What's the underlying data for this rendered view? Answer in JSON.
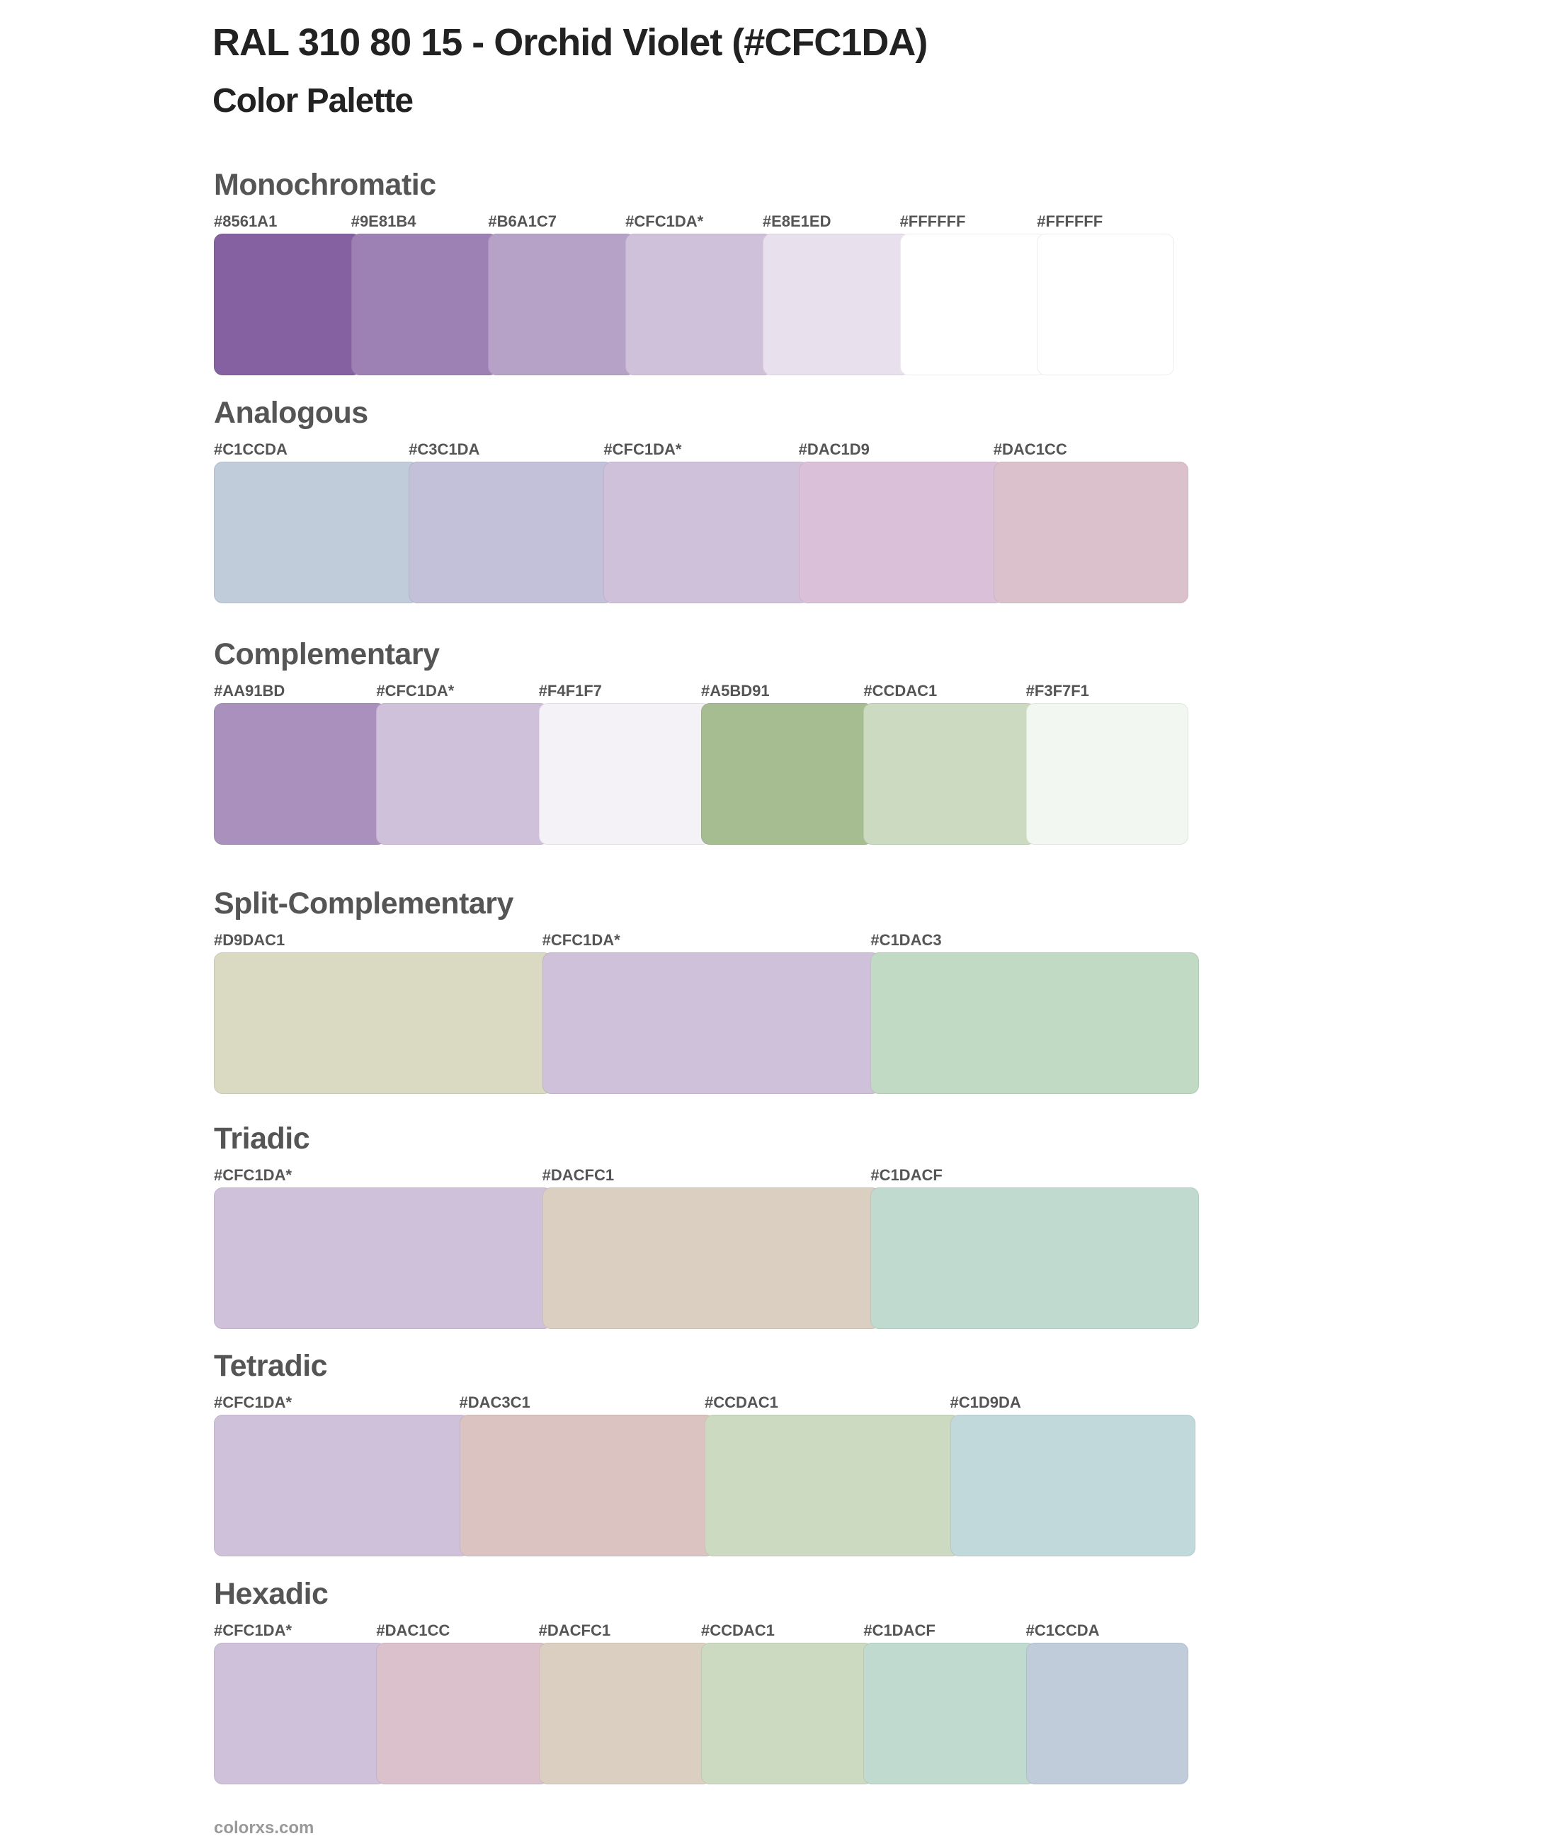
{
  "header": {
    "title": "RAL 310 80 15 - Orchid Violet (#CFC1DA)",
    "subtitle": "Color Palette"
  },
  "sections": [
    {
      "title": "Monochromatic",
      "colors": [
        {
          "label": "#8561A1",
          "hex": "#8561A1"
        },
        {
          "label": "#9E81B4",
          "hex": "#9E81B4"
        },
        {
          "label": "#B6A1C7",
          "hex": "#B6A1C7"
        },
        {
          "label": "#CFC1DA*",
          "hex": "#CFC1DA"
        },
        {
          "label": "#E8E1ED",
          "hex": "#E8E1ED"
        },
        {
          "label": "#FFFFFF",
          "hex": "#FFFFFF"
        },
        {
          "label": "#FFFFFF",
          "hex": "#FFFFFF"
        }
      ]
    },
    {
      "title": "Analogous",
      "colors": [
        {
          "label": "#C1CCDA",
          "hex": "#C1CCDA"
        },
        {
          "label": "#C3C1DA",
          "hex": "#C3C1DA"
        },
        {
          "label": "#CFC1DA*",
          "hex": "#CFC1DA"
        },
        {
          "label": "#DAC1D9",
          "hex": "#DAC1D9"
        },
        {
          "label": "#DAC1CC",
          "hex": "#DAC1CC"
        }
      ]
    },
    {
      "title": "Complementary",
      "colors": [
        {
          "label": "#AA91BD",
          "hex": "#AA91BD"
        },
        {
          "label": "#CFC1DA*",
          "hex": "#CFC1DA"
        },
        {
          "label": "#F4F1F7",
          "hex": "#F4F1F7"
        },
        {
          "label": "#A5BD91",
          "hex": "#A5BD91"
        },
        {
          "label": "#CCDAC1",
          "hex": "#CCDAC1"
        },
        {
          "label": "#F3F7F1",
          "hex": "#F3F7F1"
        }
      ]
    },
    {
      "title": "Split-Complementary",
      "colors": [
        {
          "label": "#D9DAC1",
          "hex": "#D9DAC1"
        },
        {
          "label": "#CFC1DA*",
          "hex": "#CFC1DA"
        },
        {
          "label": "#C1DAC3",
          "hex": "#C1DAC3"
        }
      ]
    },
    {
      "title": "Triadic",
      "colors": [
        {
          "label": "#CFC1DA*",
          "hex": "#CFC1DA"
        },
        {
          "label": "#DACFC1",
          "hex": "#DACFC1"
        },
        {
          "label": "#C1DACF",
          "hex": "#C1DACF"
        }
      ]
    },
    {
      "title": "Tetradic",
      "colors": [
        {
          "label": "#CFC1DA*",
          "hex": "#CFC1DA"
        },
        {
          "label": "#DAC3C1",
          "hex": "#DAC3C1"
        },
        {
          "label": "#CCDAC1",
          "hex": "#CCDAC1"
        },
        {
          "label": "#C1D9DA",
          "hex": "#C1D9DA"
        }
      ]
    },
    {
      "title": "Hexadic",
      "colors": [
        {
          "label": "#CFC1DA*",
          "hex": "#CFC1DA"
        },
        {
          "label": "#DAC1CC",
          "hex": "#DAC1CC"
        },
        {
          "label": "#DACFC1",
          "hex": "#DACFC1"
        },
        {
          "label": "#CCDAC1",
          "hex": "#CCDAC1"
        },
        {
          "label": "#C1DACF",
          "hex": "#C1DACF"
        },
        {
          "label": "#C1CCDA",
          "hex": "#C1CCDA"
        }
      ]
    }
  ],
  "footer": {
    "text": "colorxs.com"
  }
}
